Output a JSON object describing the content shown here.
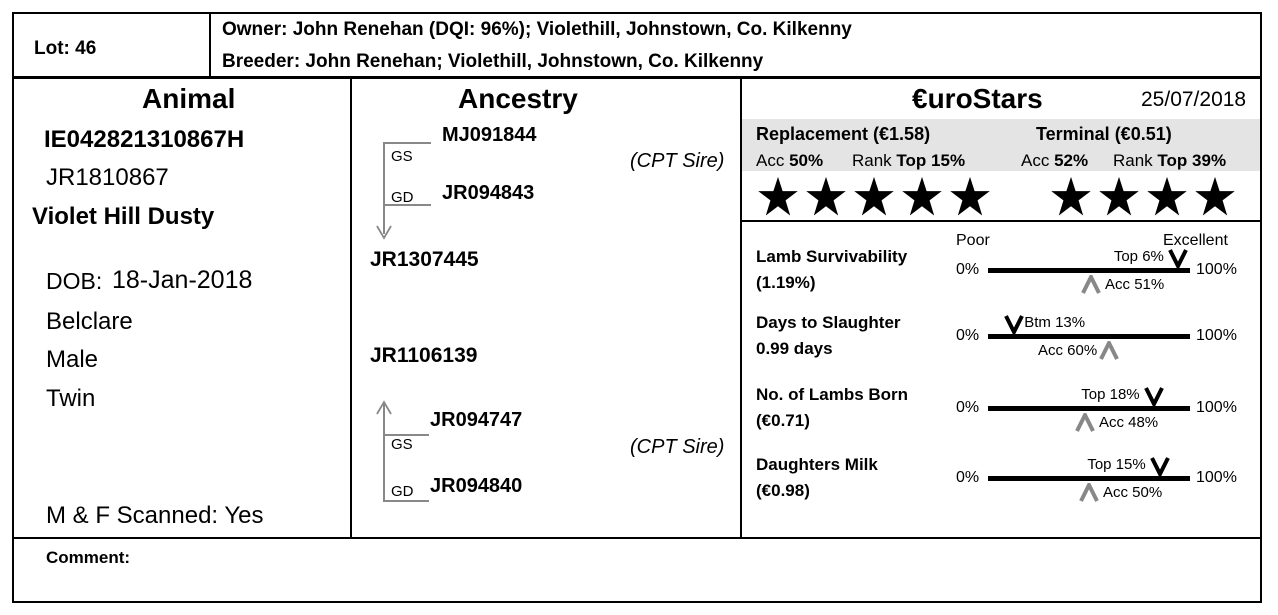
{
  "header": {
    "lot": "Lot: 46",
    "owner": "Owner: John Renehan (DQI: 96%); Violethill, Johnstown, Co. Kilkenny",
    "breeder": "Breeder: John Renehan; Violethill, Johnstown, Co. Kilkenny"
  },
  "animal": {
    "title": "Animal",
    "id": "IE042821310867H",
    "tag": "JR1810867",
    "name": "Violet Hill Dusty",
    "dob_label": "DOB:",
    "dob": "18-Jan-2018",
    "breed": "Belclare",
    "sex": "Male",
    "birth_type": "Twin",
    "scanned": "M & F Scanned: Yes"
  },
  "ancestry": {
    "title": "Ancestry",
    "sire_gs": "MJ091844",
    "sire_gd": "JR094843",
    "sire": "JR1307445",
    "dam": "JR1106139",
    "dam_gs": "JR094747",
    "dam_gd": "JR094840",
    "gs_label": "GS",
    "gd_label": "GD",
    "cpt_sire_1": "(CPT Sire)",
    "cpt_sire_2": "(CPT Sire)"
  },
  "eurostars": {
    "title": "€uroStars",
    "date": "25/07/2018",
    "replacement": {
      "title": "Replacement (€1.58)",
      "acc_label": "Acc",
      "acc": "50%",
      "rank_label": "Rank",
      "rank": "Top 15%",
      "stars": 5
    },
    "terminal": {
      "title": "Terminal  (€0.51)",
      "acc_label": "Acc",
      "acc": "52%",
      "rank_label": "Rank",
      "rank": "Top 39%",
      "stars": 4
    },
    "scale_poor": "Poor",
    "scale_excellent": "Excellent",
    "traits": [
      {
        "name": "Lamb Survivability",
        "value": "(1.19%)",
        "rank": "Top 6%",
        "acc": "Acc 51%",
        "min": "0%",
        "max": "100%",
        "rank_pos": 0.94,
        "acc_pos": 0.51
      },
      {
        "name": "Days to Slaughter",
        "value": "0.99 days",
        "rank": "Btm 13%",
        "acc": "Acc 60%",
        "min": "0%",
        "max": "100%",
        "rank_pos": 0.13,
        "acc_pos": 0.6
      },
      {
        "name": "No. of Lambs Born",
        "value": "(€0.71)",
        "rank": "Top 18%",
        "acc": "Acc 48%",
        "min": "0%",
        "max": "100%",
        "rank_pos": 0.82,
        "acc_pos": 0.48
      },
      {
        "name": "Daughters Milk",
        "value": "(€0.98)",
        "rank": "Top 15%",
        "acc": "Acc 50%",
        "min": "0%",
        "max": "100%",
        "rank_pos": 0.85,
        "acc_pos": 0.5
      }
    ]
  },
  "comment": {
    "label": "Comment:",
    "text": ""
  }
}
